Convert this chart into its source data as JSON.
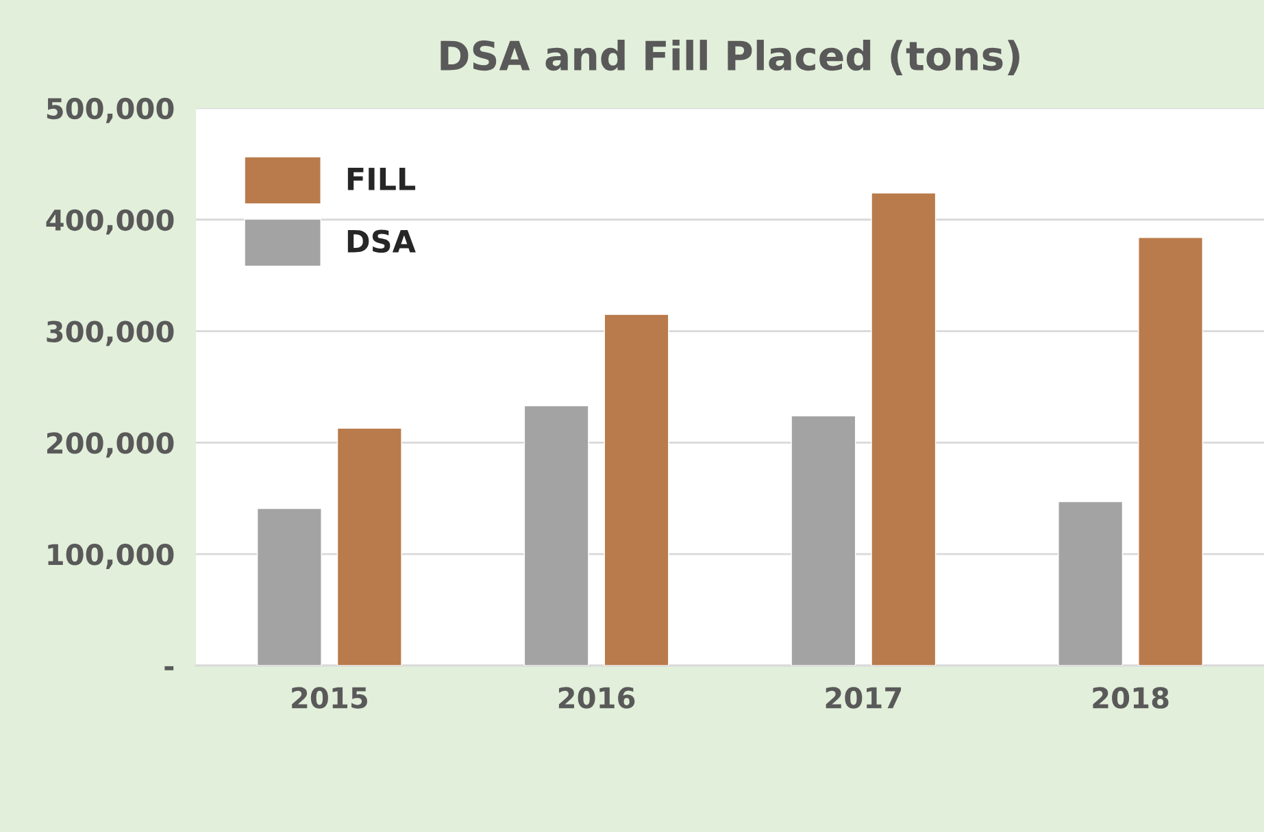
{
  "chart_data": {
    "type": "bar",
    "title": "DSA and Fill Placed (tons)",
    "categories": [
      "2015",
      "2016",
      "2017",
      "2018"
    ],
    "series": [
      {
        "name": "DSA",
        "color": "#a3a3a3",
        "values": [
          141000,
          233000,
          224000,
          147000
        ]
      },
      {
        "name": "FILL",
        "color": "#b97b4b",
        "values": [
          213000,
          315000,
          424000,
          384000
        ]
      }
    ],
    "ylim": [
      0,
      500000
    ],
    "yticks": [
      {
        "value": 0,
        "label": "-"
      },
      {
        "value": 100000,
        "label": "100,000"
      },
      {
        "value": 200000,
        "label": "200,000"
      },
      {
        "value": 300000,
        "label": "300,000"
      },
      {
        "value": 400000,
        "label": "400,000"
      },
      {
        "value": 500000,
        "label": "500,000"
      }
    ],
    "grid": "y",
    "legend": "top left"
  }
}
